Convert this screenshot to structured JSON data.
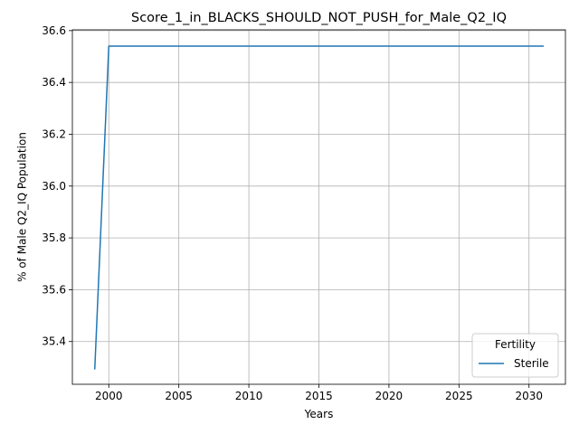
{
  "chart_data": {
    "type": "line",
    "title": "Score_1_in_BLACKS_SHOULD_NOT_PUSH_for_Male_Q2_IQ",
    "xlabel": "Years",
    "ylabel": "% of Male Q2_IQ Population",
    "xlim": [
      1997.4,
      2032.6
    ],
    "ylim": [
      35.235,
      36.603
    ],
    "xticks": [
      2000,
      2005,
      2010,
      2015,
      2020,
      2025,
      2030
    ],
    "yticks": [
      35.4,
      35.6,
      35.8,
      36.0,
      36.2,
      36.4,
      36.6
    ],
    "grid": true,
    "legend": {
      "title": "Fertility",
      "location": "lower right"
    },
    "series": [
      {
        "name": "Sterile",
        "color": "#1f77b4",
        "x": [
          1999,
          2000,
          2001,
          2002,
          2003,
          2004,
          2005,
          2006,
          2007,
          2008,
          2009,
          2010,
          2011,
          2012,
          2013,
          2014,
          2015,
          2016,
          2017,
          2018,
          2019,
          2020,
          2021,
          2022,
          2023,
          2024,
          2025,
          2026,
          2027,
          2028,
          2029,
          2030,
          2031
        ],
        "y": [
          35.295,
          36.54,
          36.54,
          36.54,
          36.54,
          36.54,
          36.54,
          36.54,
          36.54,
          36.54,
          36.54,
          36.54,
          36.54,
          36.54,
          36.54,
          36.54,
          36.54,
          36.54,
          36.54,
          36.54,
          36.54,
          36.54,
          36.54,
          36.54,
          36.54,
          36.54,
          36.54,
          36.54,
          36.54,
          36.54,
          36.54,
          36.54,
          36.54
        ]
      }
    ]
  }
}
